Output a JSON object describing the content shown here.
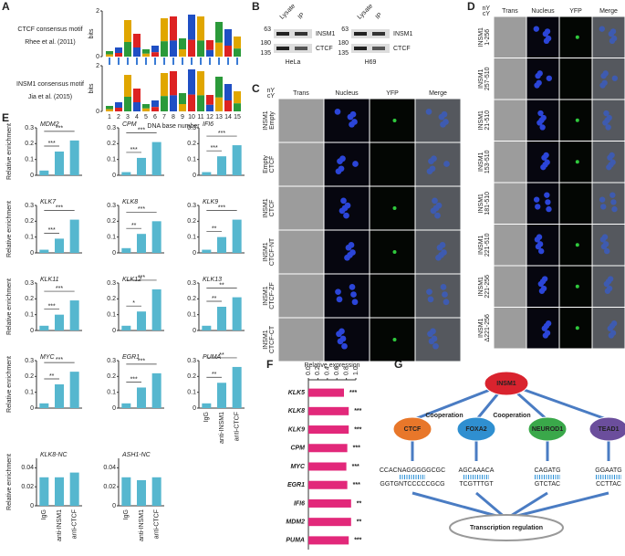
{
  "panel_labels": [
    "A",
    "B",
    "C",
    "D",
    "E",
    "F",
    "G"
  ],
  "panel_a": {
    "motifs": [
      {
        "name": "CTCF consensus motif",
        "ref": "Rhee et al. (2011)"
      },
      {
        "name": "INSM1 consensus motif",
        "ref": "Jia et al. (2015)"
      }
    ],
    "ylabel": "bits",
    "yticks": [
      0,
      2
    ],
    "xlabel": "DNA base number",
    "base_numbers": [
      1,
      2,
      3,
      4,
      5,
      6,
      7,
      8,
      9,
      10,
      11,
      12,
      13,
      14,
      15
    ]
  },
  "panel_b": {
    "header": [
      "Lysate",
      "IP"
    ],
    "markers": [
      63,
      180,
      135
    ],
    "bands": [
      "INSM1",
      "CTCF"
    ],
    "cells": [
      "HeLa",
      "H69"
    ]
  },
  "panel_c": {
    "corner": [
      "nY",
      "cY"
    ],
    "columns": [
      "Trans",
      "Nucleus",
      "YFP",
      "Merge"
    ],
    "rows": [
      [
        "INSM1",
        "Empty"
      ],
      [
        "Empty",
        "CTCF"
      ],
      [
        "INSM1",
        "CTCF"
      ],
      [
        "INSM1",
        "CTCF-NT"
      ],
      [
        "INSM1",
        "CTCF-ZF"
      ],
      [
        "INSM1",
        "CTCF-CT"
      ]
    ]
  },
  "panel_d": {
    "corner": [
      "nY",
      "cY"
    ],
    "columns": [
      "Trans",
      "Nucleus",
      "YFP",
      "Merge"
    ],
    "rows": [
      [
        "INSM1",
        "1-256"
      ],
      [
        "INSM1",
        "257-510"
      ],
      [
        "INSM1",
        "21-510"
      ],
      [
        "INSM1",
        "153-510"
      ],
      [
        "INSM1",
        "181-510"
      ],
      [
        "INSM1",
        "221-510"
      ],
      [
        "INSM1",
        "221-256"
      ],
      [
        "INSM1",
        "Δ221-256"
      ]
    ]
  },
  "panel_e": {
    "ylabel": "Relative enrichment"
  },
  "chart_data": [
    {
      "type": "bar",
      "title": "MDM2",
      "categories": [
        null,
        null,
        null
      ],
      "values": [
        0.03,
        0.15,
        0.22
      ],
      "annotations": [
        "***",
        "***"
      ],
      "color": "#56b7cf",
      "ylim": [
        0,
        0.3
      ],
      "yticks": [
        0,
        0.1,
        0.2,
        0.3
      ]
    },
    {
      "type": "bar",
      "title": "CPM",
      "categories": [
        null,
        null,
        null
      ],
      "values": [
        0.02,
        0.11,
        0.21
      ],
      "annotations": [
        "***",
        "***"
      ],
      "color": "#56b7cf",
      "ylim": [
        0,
        0.3
      ],
      "yticks": [
        0,
        0.1,
        0.2,
        0.3
      ]
    },
    {
      "type": "bar",
      "title": "IFI6",
      "categories": [
        null,
        null,
        null
      ],
      "values": [
        0.02,
        0.12,
        0.19
      ],
      "annotations": [
        "***",
        "***"
      ],
      "color": "#56b7cf",
      "ylim": [
        0,
        0.3
      ],
      "yticks": [
        0,
        0.1,
        0.2,
        0.3
      ]
    },
    {
      "type": "bar",
      "title": "KLK7",
      "categories": [
        null,
        null,
        null
      ],
      "values": [
        0.02,
        0.09,
        0.21
      ],
      "annotations": [
        "***",
        "***"
      ],
      "color": "#56b7cf",
      "ylim": [
        0,
        0.3
      ],
      "yticks": [
        0,
        0.1,
        0.2,
        0.3
      ]
    },
    {
      "type": "bar",
      "title": "KLK8",
      "categories": [
        null,
        null,
        null
      ],
      "values": [
        0.03,
        0.12,
        0.2
      ],
      "annotations": [
        "**",
        "***"
      ],
      "color": "#56b7cf",
      "ylim": [
        0,
        0.3
      ],
      "yticks": [
        0,
        0.1,
        0.2,
        0.3
      ]
    },
    {
      "type": "bar",
      "title": "KLK9",
      "categories": [
        null,
        null,
        null
      ],
      "values": [
        0.02,
        0.1,
        0.21
      ],
      "annotations": [
        "**",
        "***"
      ],
      "color": "#56b7cf",
      "ylim": [
        0,
        0.3
      ],
      "yticks": [
        0,
        0.1,
        0.2,
        0.3
      ]
    },
    {
      "type": "bar",
      "title": "KLK11",
      "categories": [
        null,
        null,
        null
      ],
      "values": [
        0.03,
        0.1,
        0.19
      ],
      "annotations": [
        "***",
        "***"
      ],
      "color": "#56b7cf",
      "ylim": [
        0,
        0.3
      ],
      "yticks": [
        0,
        0.1,
        0.2,
        0.3
      ]
    },
    {
      "type": "bar",
      "title": "KLK12",
      "categories": [
        null,
        null,
        null
      ],
      "values": [
        0.03,
        0.12,
        0.26
      ],
      "annotations": [
        "*",
        "***"
      ],
      "color": "#56b7cf",
      "ylim": [
        0,
        0.3
      ],
      "yticks": [
        0,
        0.1,
        0.2,
        0.3
      ]
    },
    {
      "type": "bar",
      "title": "KLK13",
      "categories": [
        null,
        null,
        null
      ],
      "values": [
        0.03,
        0.15,
        0.21
      ],
      "annotations": [
        "**",
        "**"
      ],
      "color": "#56b7cf",
      "ylim": [
        0,
        0.3
      ],
      "yticks": [
        0,
        0.1,
        0.2,
        0.3
      ]
    },
    {
      "type": "bar",
      "title": "MYC",
      "categories": [
        null,
        null,
        null
      ],
      "values": [
        0.03,
        0.15,
        0.23
      ],
      "annotations": [
        "**",
        "***"
      ],
      "color": "#56b7cf",
      "ylim": [
        0,
        0.3
      ],
      "yticks": [
        0,
        0.1,
        0.2,
        0.3
      ]
    },
    {
      "type": "bar",
      "title": "EGR1",
      "categories": [
        null,
        null,
        null
      ],
      "values": [
        0.03,
        0.13,
        0.22
      ],
      "annotations": [
        "***",
        "***"
      ],
      "color": "#56b7cf",
      "ylim": [
        0,
        0.3
      ],
      "yticks": [
        0,
        0.1,
        0.2,
        0.3
      ]
    },
    {
      "type": "bar",
      "title": "PUMA",
      "categories": [
        "IgG",
        "anti-INSM1",
        "anti-CTCF"
      ],
      "values": [
        0.03,
        0.16,
        0.26
      ],
      "annotations": [
        "**",
        "**"
      ],
      "color": "#56b7cf",
      "ylim": [
        0,
        0.3
      ],
      "yticks": [
        0,
        0.1,
        0.2,
        0.3
      ]
    },
    {
      "type": "bar",
      "title": "KLK8-NC",
      "categories": [
        "IgG",
        "anti-INSM1",
        "anti-CTCF"
      ],
      "values": [
        0.03,
        0.03,
        0.035
      ],
      "color": "#56b7cf",
      "ylim": [
        0,
        0.05
      ],
      "yticks": [
        0,
        0.02,
        0.04
      ]
    },
    {
      "type": "bar",
      "title": "ASH1-NC",
      "categories": [
        "IgG",
        "anti-INSM1",
        "anti-CTCF"
      ],
      "values": [
        0.03,
        0.027,
        0.03
      ],
      "color": "#56b7cf",
      "ylim": [
        0,
        0.05
      ],
      "yticks": [
        0,
        0.02,
        0.04
      ]
    },
    {
      "type": "hbar",
      "title": "Relative expression",
      "categories": [
        "KLK5",
        "KLK8",
        "KLK9",
        "CPM",
        "MYC",
        "EGR1",
        "IFI6",
        "MDM2",
        "PUMA"
      ],
      "values": [
        0.75,
        0.85,
        0.85,
        0.82,
        0.8,
        0.82,
        0.9,
        0.9,
        0.85
      ],
      "annotations": [
        "***",
        "***",
        "***",
        "***",
        "***",
        "***",
        "**",
        "**",
        "***"
      ],
      "color": "#e2287a",
      "xlim": [
        0,
        1
      ],
      "xticks": [
        {
          "value": 0,
          "label": "0.0"
        },
        0.2,
        0.4,
        0.6,
        0.8,
        {
          "value": 1,
          "label": "1.0"
        }
      ]
    }
  ],
  "panel_g": {
    "nodes": [
      "INSM1",
      "CTCF",
      "FOXA2",
      "NEUROD1",
      "TEAD1"
    ],
    "cooperation": [
      "Cooperation",
      "Cooperation"
    ],
    "sequences": [
      [
        "CCACNAGGGGGCGC",
        "GGTGNTCCCCCGCG"
      ],
      [
        "AGCAAACA",
        "TCGTTTGT"
      ],
      [
        "CAGATG",
        "GTCTAC"
      ],
      [
        "GGAATG",
        "CCTTAC"
      ]
    ],
    "outcome": "Transcription regulation"
  }
}
